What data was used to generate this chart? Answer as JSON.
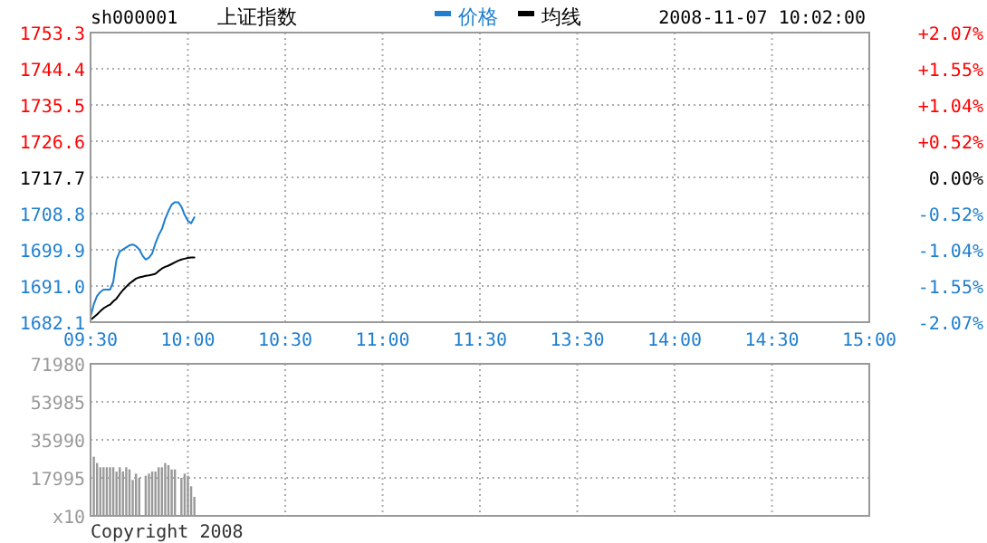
{
  "chart_data": [
    {
      "type": "line",
      "title": "sh000001",
      "subtitle": "上证指数",
      "annotations": [
        "2008-11-07 10:02:00"
      ],
      "legend": "top",
      "grid": true,
      "line_style": "solid",
      "categories": [
        "09:30",
        null,
        null,
        null,
        null,
        null,
        null,
        null,
        null,
        null,
        null,
        null,
        null,
        null,
        null,
        null,
        null,
        null,
        null,
        null,
        null,
        null,
        null,
        null,
        null,
        null,
        null,
        null,
        null,
        null,
        "10:00",
        null,
        null,
        null,
        null,
        null,
        null,
        null,
        null,
        null,
        null,
        null,
        null,
        null,
        null,
        null,
        null,
        null,
        null,
        null,
        null,
        null,
        null,
        null,
        null,
        null,
        null,
        null,
        null,
        null,
        "10:30",
        null,
        null,
        null,
        null,
        null,
        null,
        null,
        null,
        null,
        null,
        null,
        null,
        null,
        null,
        null,
        null,
        null,
        null,
        null,
        null,
        null,
        null,
        null,
        null,
        null,
        null,
        null,
        null,
        null,
        "11:00",
        null,
        null,
        null,
        null,
        null,
        null,
        null,
        null,
        null,
        null,
        null,
        null,
        null,
        null,
        null,
        null,
        null,
        null,
        null,
        null,
        null,
        null,
        null,
        null,
        null,
        null,
        null,
        null,
        null,
        "11:30",
        null,
        null,
        null,
        null,
        null,
        null,
        null,
        null,
        null,
        null,
        null,
        null,
        null,
        null,
        null,
        null,
        null,
        null,
        null,
        null,
        null,
        null,
        null,
        null,
        null,
        null,
        null,
        null,
        null,
        "13:30",
        null,
        null,
        null,
        null,
        null,
        null,
        null,
        null,
        null,
        null,
        null,
        null,
        null,
        null,
        null,
        null,
        null,
        null,
        null,
        null,
        null,
        null,
        null,
        null,
        null,
        null,
        null,
        null,
        null,
        "14:00",
        null,
        null,
        null,
        null,
        null,
        null,
        null,
        null,
        null,
        null,
        null,
        null,
        null,
        null,
        null,
        null,
        null,
        null,
        null,
        null,
        null,
        null,
        null,
        null,
        null,
        null,
        null,
        null,
        null,
        "14:30",
        null,
        null,
        null,
        null,
        null,
        null,
        null,
        null,
        null,
        null,
        null,
        null,
        null,
        null,
        null,
        null,
        null,
        null,
        null,
        null,
        null,
        null,
        null,
        null,
        null,
        null,
        null,
        null,
        null,
        "15:00"
      ],
      "ylim": [
        1682.1,
        1753.3
      ],
      "yticks": [
        1682.1,
        {
          "value": 1691.0,
          "label": "1691.0"
        },
        1699.9,
        1708.8,
        1717.7,
        1726.6,
        1735.5,
        1744.4,
        1753.3
      ],
      "y2lim": [
        -2.07,
        2.07
      ],
      "y2ticks": [
        {
          "value": -2.07,
          "label": "-2.07%"
        },
        {
          "value": -1.55,
          "label": "-1.55%"
        },
        {
          "value": -1.04,
          "label": "-1.04%"
        },
        {
          "value": -0.52,
          "label": "-0.52%"
        },
        {
          "value": 0,
          "label": "0.00%"
        },
        {
          "value": 0.52,
          "label": "+0.52%"
        },
        {
          "value": 1.04,
          "label": "+1.04%"
        },
        {
          "value": 1.55,
          "label": "+1.55%"
        },
        {
          "value": 2.07,
          "label": "+2.07%"
        }
      ],
      "series": [
        {
          "name": "价格",
          "color": "#1e7fd0",
          "values": [
            1683.4,
            1686.5,
            1688.5,
            1689.5,
            1690.1,
            1690.1,
            1690.1,
            1692.0,
            1697.5,
            1699.5,
            1700.0,
            1700.5,
            1701.0,
            1701.2,
            1700.8,
            1700.0,
            1698.5,
            1697.5,
            1698.0,
            1699.0,
            1701.5,
            1703.5,
            1705.0,
            1707.5,
            1709.4,
            1711.0,
            1711.6,
            1711.6,
            1710.5,
            1708.5,
            1707.0,
            1706.4,
            1707.9,
            null,
            null,
            null,
            null,
            null,
            null,
            null,
            null,
            null,
            null,
            null,
            null,
            null,
            null,
            null,
            null,
            null,
            null,
            null,
            null,
            null,
            null,
            null,
            null,
            null,
            null,
            null,
            null,
            null,
            null,
            null,
            null,
            null,
            null,
            null,
            null,
            null,
            null,
            null,
            null,
            null,
            null,
            null,
            null,
            null,
            null,
            null,
            null,
            null,
            null,
            null,
            null,
            null,
            null,
            null,
            null,
            null,
            null,
            null,
            null,
            null,
            null,
            null,
            null,
            null,
            null,
            null,
            null,
            null,
            null,
            null,
            null,
            null,
            null,
            null,
            null,
            null,
            null,
            null,
            null,
            null,
            null,
            null,
            null,
            null,
            null,
            null,
            null,
            null,
            null,
            null,
            null,
            null,
            null,
            null,
            null,
            null,
            null,
            null,
            null,
            null,
            null,
            null,
            null,
            null,
            null,
            null,
            null,
            null,
            null,
            null,
            null,
            null,
            null,
            null,
            null,
            null,
            null,
            null,
            null,
            null,
            null,
            null,
            null,
            null,
            null,
            null,
            null,
            null,
            null,
            null,
            null,
            null,
            null,
            null,
            null,
            null,
            null,
            null,
            null,
            null,
            null,
            null,
            null,
            null,
            null,
            null,
            null,
            null,
            null,
            null,
            null,
            null,
            null,
            null,
            null,
            null,
            null,
            null,
            null,
            null,
            null,
            null,
            null,
            null,
            null,
            null,
            null,
            null,
            null,
            null,
            null,
            null,
            null,
            null,
            null,
            null,
            null,
            null,
            null,
            null,
            null,
            null,
            null,
            null,
            null,
            null,
            null,
            null,
            null,
            null,
            null,
            null,
            null,
            null,
            null,
            null,
            null,
            null,
            null,
            null,
            null,
            null,
            null,
            null,
            null,
            null,
            null
          ]
        },
        {
          "name": "均线",
          "color": "#000000",
          "values": [
            1682.7,
            1683.3,
            1684.0,
            1684.8,
            1685.5,
            1686.0,
            1686.4,
            1687.2,
            1687.9,
            1689.0,
            1690.0,
            1690.8,
            1691.6,
            1692.2,
            1692.8,
            1693.1,
            1693.3,
            1693.5,
            1693.6,
            1693.8,
            1694.0,
            1694.7,
            1695.3,
            1695.7,
            1696.0,
            1696.4,
            1696.8,
            1697.2,
            1697.5,
            1697.7,
            1697.9,
            1698.0,
            1698.0,
            null,
            null,
            null,
            null,
            null,
            null,
            null,
            null,
            null,
            null,
            null,
            null,
            null,
            null,
            null,
            null,
            null,
            null,
            null,
            null,
            null,
            null,
            null,
            null,
            null,
            null,
            null,
            null,
            null,
            null,
            null,
            null,
            null,
            null,
            null,
            null,
            null,
            null,
            null,
            null,
            null,
            null,
            null,
            null,
            null,
            null,
            null,
            null,
            null,
            null,
            null,
            null,
            null,
            null,
            null,
            null,
            null,
            null,
            null,
            null,
            null,
            null,
            null,
            null,
            null,
            null,
            null,
            null,
            null,
            null,
            null,
            null,
            null,
            null,
            null,
            null,
            null,
            null,
            null,
            null,
            null,
            null,
            null,
            null,
            null,
            null,
            null,
            null,
            null,
            null,
            null,
            null,
            null,
            null,
            null,
            null,
            null,
            null,
            null,
            null,
            null,
            null,
            null,
            null,
            null,
            null,
            null,
            null,
            null,
            null,
            null,
            null,
            null,
            null,
            null,
            null,
            null,
            null,
            null,
            null,
            null,
            null,
            null,
            null,
            null,
            null,
            null,
            null,
            null,
            null,
            null,
            null,
            null,
            null,
            null,
            null,
            null,
            null,
            null,
            null,
            null,
            null,
            null,
            null,
            null,
            null,
            null,
            null,
            null,
            null,
            null,
            null,
            null,
            null,
            null,
            null,
            null,
            null,
            null,
            null,
            null,
            null,
            null,
            null,
            null,
            null,
            null,
            null,
            null,
            null,
            null,
            null,
            null,
            null,
            null,
            null,
            null,
            null,
            null,
            null,
            null,
            null,
            null,
            null,
            null,
            null,
            null,
            null,
            null,
            null,
            null,
            null,
            null,
            null,
            null,
            null,
            null,
            null,
            null,
            null,
            null,
            null,
            null,
            null,
            null,
            null,
            null,
            null
          ]
        }
      ]
    },
    {
      "type": "bar",
      "annotations": [
        "Copyright 2008"
      ],
      "grid": true,
      "tick_labels": "y",
      "categories": [
        null,
        null,
        null,
        null,
        null,
        null,
        null,
        null,
        null,
        null,
        null,
        null,
        null,
        null,
        null,
        null,
        null,
        null,
        null,
        null,
        null,
        null,
        null,
        null,
        null,
        null,
        null,
        null,
        null,
        null,
        null,
        null,
        null,
        null,
        null,
        null,
        null,
        null,
        null,
        null,
        null,
        null,
        null,
        null,
        null,
        null,
        null,
        null,
        null,
        null,
        null,
        null,
        null,
        null,
        null,
        null,
        null,
        null,
        null,
        null,
        null,
        null,
        null,
        null,
        null,
        null,
        null,
        null,
        null,
        null,
        null,
        null,
        null,
        null,
        null,
        null,
        null,
        null,
        null,
        null,
        null,
        null,
        null,
        null,
        null,
        null,
        null,
        null,
        null,
        null,
        null,
        null,
        null,
        null,
        null,
        null,
        null,
        null,
        null,
        null,
        null,
        null,
        null,
        null,
        null,
        null,
        null,
        null,
        null,
        null,
        null,
        null,
        null,
        null,
        null,
        null,
        null,
        null,
        null,
        null,
        null,
        null,
        null,
        null,
        null,
        null,
        null,
        null,
        null,
        null,
        null,
        null,
        null,
        null,
        null,
        null,
        null,
        null,
        null,
        null,
        null,
        null,
        null,
        null,
        null,
        null,
        null,
        null,
        null,
        null,
        null,
        null,
        null,
        null,
        null,
        null,
        null,
        null,
        null,
        null,
        null,
        null,
        null,
        null,
        null,
        null,
        null,
        null,
        null,
        null,
        null,
        null,
        null,
        null,
        null,
        null,
        null,
        null,
        null,
        null,
        null,
        null,
        null,
        null,
        null,
        null,
        null,
        null,
        null,
        null,
        null,
        null,
        null,
        null,
        null,
        null,
        null,
        null,
        null,
        null,
        null,
        null,
        null,
        null,
        null,
        null,
        null,
        null,
        null,
        null,
        null,
        null,
        null,
        null,
        null,
        null,
        null,
        null,
        null,
        null,
        null,
        null,
        null,
        null,
        null,
        null,
        null,
        null,
        null,
        null,
        null,
        null,
        null,
        null,
        null,
        null,
        null,
        null,
        null,
        null,
        null
      ],
      "ylim": [
        0,
        71980
      ],
      "yticks": [
        {
          "value": 0,
          "label": "x10"
        },
        17995,
        35990,
        53985,
        71980
      ],
      "values": [
        null,
        28000,
        25000,
        23000,
        23000,
        23000,
        23000,
        23000,
        21000,
        23000,
        21000,
        23000,
        22000,
        17000,
        20000,
        18000,
        null,
        19000,
        20000,
        21000,
        21000,
        23000,
        23000,
        25000,
        24000,
        22000,
        22000,
        null,
        18000,
        20000,
        19000,
        14000,
        9000,
        null,
        null,
        null,
        null,
        null,
        null,
        null,
        null,
        null,
        null,
        null,
        null,
        null,
        null,
        null,
        null,
        null,
        null,
        null,
        null,
        null,
        null,
        null,
        null,
        null,
        null,
        null,
        null,
        null,
        null,
        null,
        null,
        null,
        null,
        null,
        null,
        null,
        null,
        null,
        null,
        null,
        null,
        null,
        null,
        null,
        null,
        null,
        null,
        null,
        null,
        null,
        null,
        null,
        null,
        null,
        null,
        null,
        null,
        null,
        null,
        null,
        null,
        null,
        null,
        null,
        null,
        null,
        null,
        null,
        null,
        null,
        null,
        null,
        null,
        null,
        null,
        null,
        null,
        null,
        null,
        null,
        null,
        null,
        null,
        null,
        null,
        null,
        null,
        null,
        null,
        null,
        null,
        null,
        null,
        null,
        null,
        null,
        null,
        null,
        null,
        null,
        null,
        null,
        null,
        null,
        null,
        null,
        null,
        null,
        null,
        null,
        null,
        null,
        null,
        null,
        null,
        null,
        null,
        null,
        null,
        null,
        null,
        null,
        null,
        null,
        null,
        null,
        null,
        null,
        null,
        null,
        null,
        null,
        null,
        null,
        null,
        null,
        null,
        null,
        null,
        null,
        null,
        null,
        null,
        null,
        null,
        null,
        null,
        null,
        null,
        null,
        null,
        null,
        null,
        null,
        null,
        null,
        null,
        null,
        null,
        null,
        null,
        null,
        null,
        null,
        null,
        null,
        null,
        null,
        null,
        null,
        null,
        null,
        null,
        null,
        null,
        null,
        null,
        null,
        null,
        null,
        null,
        null,
        null,
        null,
        null,
        null,
        null,
        null,
        null,
        null,
        null,
        null,
        null,
        null,
        null,
        null,
        null,
        null,
        null,
        null,
        null,
        null,
        null,
        null,
        null,
        null,
        null
      ],
      "color": "#999999"
    }
  ]
}
